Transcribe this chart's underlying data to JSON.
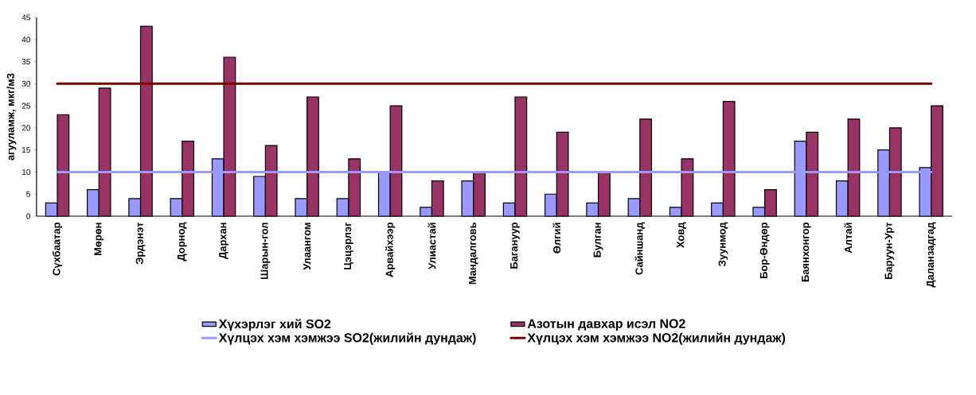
{
  "chart_data": {
    "type": "bar",
    "ylabel": "агууламж, мкг/м3",
    "categories": [
      "Сүхбаатар",
      "Мөрөн",
      "Эрдэнэт",
      "Дорнод",
      "Дархан",
      "Шарын-гол",
      "Улаангом",
      "Цэцэрлэг",
      "Арвайхээр",
      "Улиастай",
      "Мандалговь",
      "Багануур",
      "Өлгий",
      "Булган",
      "Сайншанд",
      "Ховд",
      "Зуунмод",
      "Бор-Өндөр",
      "Баянхонгор",
      "Алтай",
      "Баруун-Урт",
      "Даланзадгад"
    ],
    "series": [
      {
        "name": "Хүхэрлэг хий SO2",
        "color": "#9999ff",
        "values": [
          3,
          6,
          4,
          4,
          13,
          9,
          4,
          4,
          10,
          2,
          8,
          3,
          5,
          3,
          4,
          2,
          3,
          2,
          17,
          8,
          15,
          11
        ]
      },
      {
        "name": "Азотын давхар исэл NO2",
        "color": "#993366",
        "values": [
          23,
          29,
          43,
          17,
          36,
          16,
          27,
          13,
          25,
          8,
          10,
          27,
          19,
          10,
          22,
          13,
          26,
          6,
          19,
          22,
          20,
          25
        ]
      },
      {
        "name": "Хүлцэх хэм хэмжээ SO2(жилийн дундаж)",
        "type": "line",
        "color": "#9999ff",
        "values": [
          10,
          10,
          10,
          10,
          10,
          10,
          10,
          10,
          10,
          10,
          10,
          10,
          10,
          10,
          10,
          10,
          10,
          10,
          10,
          10,
          10,
          10
        ]
      },
      {
        "name": "Хүлцэх хэм хэмжээ NO2(жилийн дундаж)",
        "type": "line",
        "color": "#800000",
        "values": [
          30,
          30,
          30,
          30,
          30,
          30,
          30,
          30,
          30,
          30,
          30,
          30,
          30,
          30,
          30,
          30,
          30,
          30,
          30,
          30,
          30,
          30
        ]
      }
    ],
    "ylim": [
      0,
      45
    ],
    "yticks": [
      0,
      5,
      10,
      15,
      20,
      25,
      30,
      35,
      40,
      45
    ],
    "grid": false,
    "legend": "bottom"
  }
}
